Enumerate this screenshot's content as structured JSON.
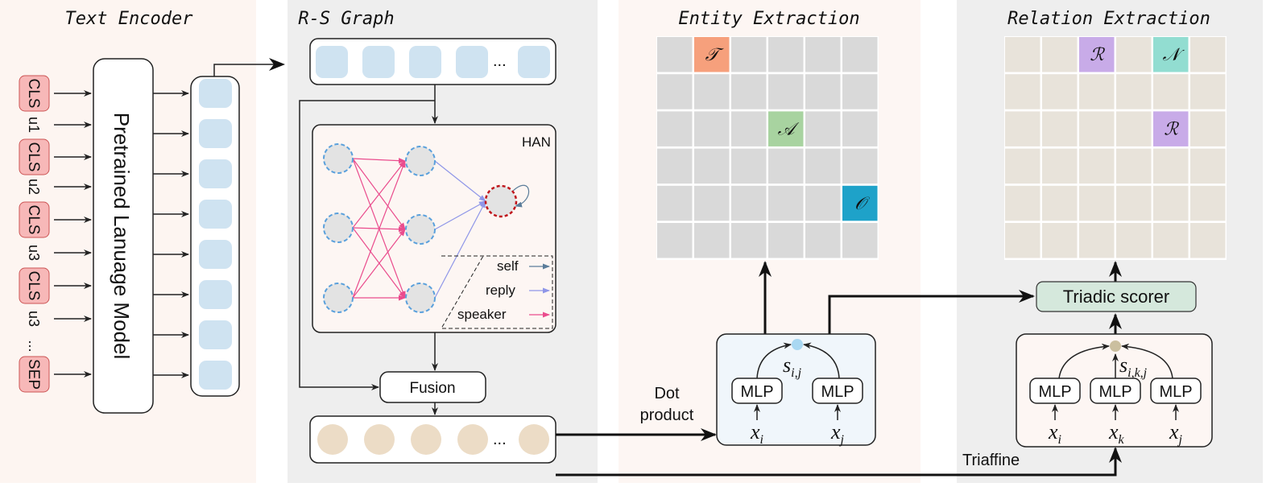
{
  "panels": {
    "text_encoder": "Text Encoder",
    "rs_graph": "R-S Graph",
    "entity_extraction": "Entity Extraction",
    "relation_extraction": "Relation Extraction"
  },
  "encoder": {
    "tokens": [
      "CLS",
      "u1",
      "CLS",
      "u2",
      "CLS",
      "u3",
      "CLS",
      "u3",
      "...",
      "SEP"
    ],
    "plm_label": "Pretrained Lanuage Model"
  },
  "graph": {
    "ellipsis": "...",
    "han_label": "HAN",
    "legend": [
      "self",
      "reply",
      "speaker"
    ],
    "fusion_label": "Fusion"
  },
  "entity": {
    "cells": [
      "𝒯",
      "𝒜",
      "𝒪"
    ],
    "score": "s",
    "score_sub": "i,j",
    "mlp": "MLP",
    "xi": "x",
    "xi_sub": "i",
    "xj": "x",
    "xj_sub": "j",
    "dot_line1": "Dot",
    "dot_line2": "product"
  },
  "relation": {
    "cells": [
      "ℛ",
      "𝒩",
      "ℛ"
    ],
    "scorer_label": "Triadic scorer",
    "score": "s",
    "score_sub": "i,k,j",
    "mlp": "MLP",
    "xk": "x",
    "xk_sub": "k",
    "triaffine_label": "Triaffine"
  },
  "colors": {
    "token": "#f7b8b8",
    "cell_blue": "#cfe3f1",
    "cell_tan": "#ecdcc6",
    "entity_T": "#f6a07c",
    "entity_A": "#a8d3a0",
    "entity_O": "#1ea2c9",
    "relation_R": "#c8abe8",
    "relation_N": "#92ddd1",
    "self_edge": "#5b7d9a",
    "reply_edge": "#8f96e8",
    "speaker_edge": "#ea4c8d"
  }
}
